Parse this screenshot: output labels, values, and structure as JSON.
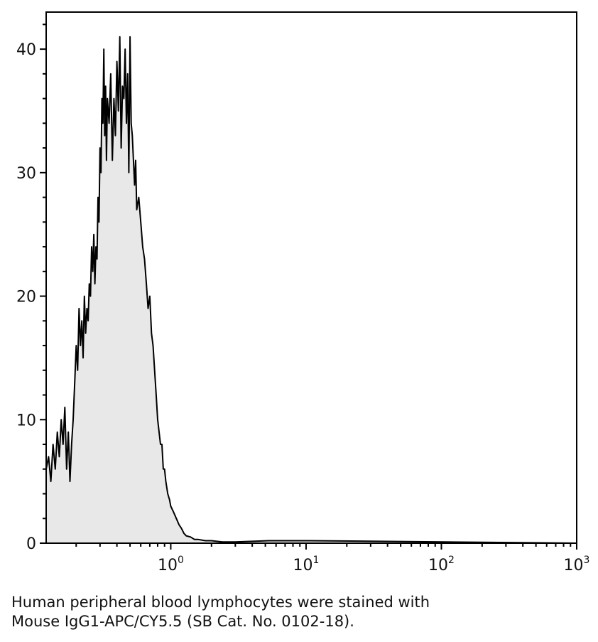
{
  "caption": {
    "line1": "Human peripheral blood lymphocytes were stained with",
    "line2": "Mouse IgG1-APC/CY5.5 (SB Cat. No. 0102-18)."
  },
  "colors": {
    "fill": "#e8e8e8",
    "line": "#000000",
    "axis": "#000000"
  },
  "chart_data": {
    "type": "area",
    "title": "",
    "xlabel": "",
    "ylabel": "",
    "x_scale": "log",
    "xlim": [
      0.12,
      1000
    ],
    "ylim": [
      0,
      43
    ],
    "grid": false,
    "legend": "none",
    "x_ticks": [
      {
        "base": "10",
        "exp": "0",
        "value": 1
      },
      {
        "base": "10",
        "exp": "1",
        "value": 10
      },
      {
        "base": "10",
        "exp": "2",
        "value": 100
      },
      {
        "base": "10",
        "exp": "3",
        "value": 1000
      }
    ],
    "y_ticks": [
      {
        "label": "0",
        "value": 0
      },
      {
        "label": "10",
        "value": 10
      },
      {
        "label": "20",
        "value": 20
      },
      {
        "label": "30",
        "value": 30
      },
      {
        "label": "40",
        "value": 40
      }
    ],
    "series": [
      {
        "x": [
          0.12,
          0.125,
          0.13,
          0.135,
          0.14,
          0.145,
          0.15,
          0.155,
          0.16,
          0.165,
          0.17,
          0.175,
          0.18,
          0.185,
          0.19,
          0.195,
          0.2,
          0.205,
          0.21,
          0.215,
          0.22,
          0.225,
          0.23,
          0.235,
          0.24,
          0.245,
          0.25,
          0.255,
          0.26,
          0.265,
          0.27,
          0.275,
          0.28,
          0.285,
          0.29,
          0.295,
          0.3,
          0.305,
          0.31,
          0.315,
          0.32,
          0.325,
          0.33,
          0.335,
          0.34,
          0.35,
          0.36,
          0.37,
          0.38,
          0.39,
          0.4,
          0.41,
          0.42,
          0.43,
          0.44,
          0.45,
          0.46,
          0.47,
          0.48,
          0.49,
          0.5,
          0.51,
          0.52,
          0.53,
          0.54,
          0.55,
          0.56,
          0.58,
          0.6,
          0.62,
          0.64,
          0.66,
          0.68,
          0.7,
          0.72,
          0.74,
          0.76,
          0.78,
          0.8,
          0.82,
          0.84,
          0.86,
          0.88,
          0.9,
          0.92,
          0.95,
          0.98,
          1.0,
          1.05,
          1.1,
          1.15,
          1.2,
          1.25,
          1.3,
          1.4,
          1.5,
          1.6,
          1.8,
          2.0,
          2.4,
          3.0,
          5.3,
          10.5,
          1000
        ],
        "y": [
          6,
          7,
          5,
          8,
          6,
          9,
          7,
          10,
          8,
          11,
          6,
          9,
          5,
          8,
          10,
          13,
          16,
          14,
          19,
          16,
          18,
          15,
          20,
          17,
          19,
          18,
          21,
          20,
          24,
          22,
          25,
          21,
          24,
          23,
          28,
          26,
          32,
          30,
          36,
          34,
          40,
          33,
          37,
          31,
          36,
          34,
          38,
          31,
          36,
          33,
          39,
          35,
          41,
          32,
          37,
          36,
          40,
          34,
          38,
          30,
          41,
          34,
          33,
          31,
          29,
          31,
          27,
          28,
          26,
          24,
          23,
          21,
          19,
          20,
          17,
          16,
          14,
          12,
          10,
          9,
          8,
          8,
          6,
          6,
          5,
          4,
          3.5,
          3,
          2.5,
          2,
          1.5,
          1.2,
          0.8,
          0.6,
          0.5,
          0.3,
          0.3,
          0.2,
          0.2,
          0.1,
          0.1,
          0.2,
          0.2,
          0
        ]
      }
    ]
  }
}
